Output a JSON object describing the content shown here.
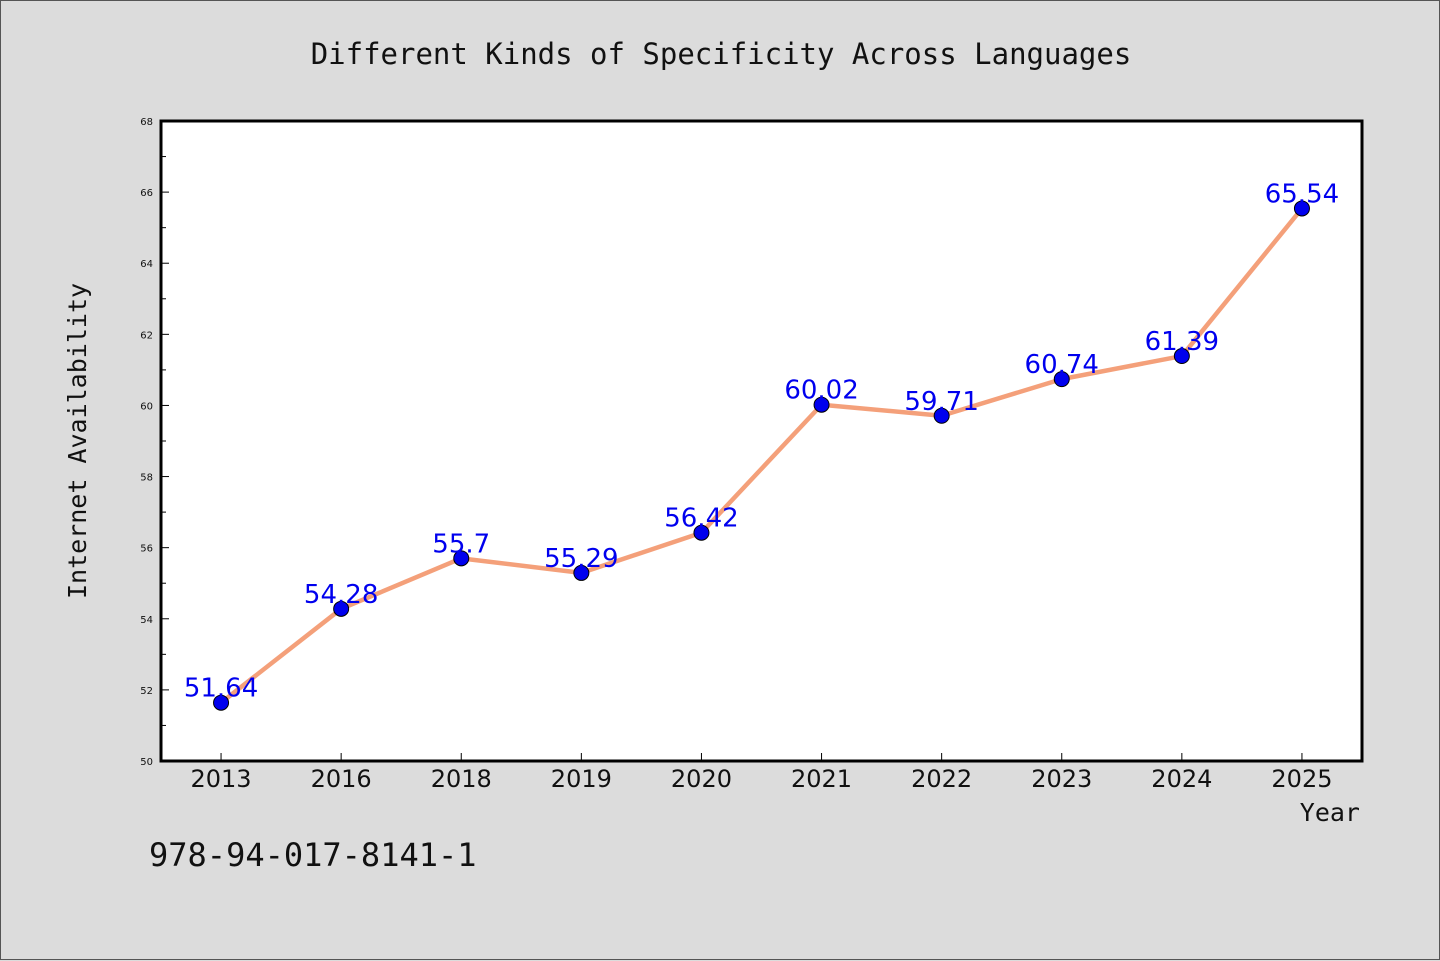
{
  "chart_data": {
    "type": "line",
    "title": "Different Kinds of Specificity Across Languages",
    "xlabel": "Year",
    "ylabel": "Internet Availability",
    "categories": [
      "2013",
      "2016",
      "2018",
      "2019",
      "2020",
      "2021",
      "2022",
      "2023",
      "2024",
      "2025"
    ],
    "series": [
      {
        "values": [
          51.64,
          54.28,
          55.7,
          55.29,
          56.42,
          60.02,
          59.71,
          60.74,
          61.39,
          65.54
        ],
        "data_labels": [
          "51.64",
          "54.28",
          "55.7",
          "55.29",
          "56.42",
          "60.02",
          "59.71",
          "60.74",
          "61.39",
          "65.54"
        ],
        "line_color": "#f4a07a",
        "marker_color": "#0000ee"
      }
    ],
    "ylim": [
      50,
      68
    ],
    "yticks": [
      "50",
      "52",
      "54",
      "56",
      "58",
      "60",
      "62",
      "64",
      "66",
      "68"
    ],
    "grid": false,
    "legend": "none",
    "label_color": "#0000ee"
  },
  "footer_text": "978-94-017-8141-1"
}
